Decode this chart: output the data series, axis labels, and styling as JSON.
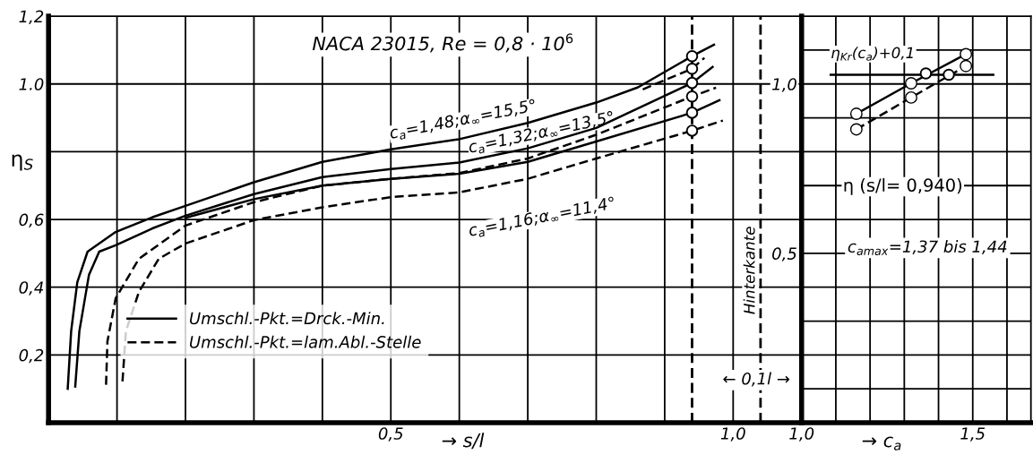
{
  "chart_data": [
    {
      "type": "line",
      "title": "NACA 23015, Re = 0,8 · 10$^{6}$",
      "xlabel": "→ s/l",
      "ylabel": "η$_{S}$",
      "xlim": [
        0,
        1.1
      ],
      "ylim": [
        0,
        1.2
      ],
      "xticks": [
        {
          "value": 0.1,
          "label": null
        },
        {
          "value": 0.2,
          "label": null
        },
        {
          "value": 0.3,
          "label": null
        },
        {
          "value": 0.4,
          "label": null
        },
        {
          "value": 0.5,
          "label": "0,5"
        },
        {
          "value": 0.6,
          "label": null
        },
        {
          "value": 0.7,
          "label": null
        },
        {
          "value": 0.8,
          "label": null
        },
        {
          "value": 0.9,
          "label": null
        },
        {
          "value": 1.0,
          "label": "1,0"
        }
      ],
      "yticks": [
        {
          "value": 0.2,
          "label": "0,2"
        },
        {
          "value": 0.4,
          "label": "0,4"
        },
        {
          "value": 0.6,
          "label": "0,6"
        },
        {
          "value": 0.8,
          "label": null
        },
        {
          "value": 1.0,
          "label": "1.0"
        },
        {
          "value": 1.2,
          "label": "1,2"
        }
      ],
      "grid": true,
      "legend": "bottom",
      "marker": "none",
      "series": [
        {
          "name": "Umschl.-Pkt.=Drck.-Min.",
          "color": "#000000",
          "line_style": "solid",
          "x": [
            0.028,
            0.033,
            0.042,
            0.057,
            0.098,
            0.151,
            0.2,
            0.3,
            0.4,
            0.5,
            0.6,
            0.7,
            0.8,
            0.861,
            0.94,
            0.972
          ],
          "values": [
            0.1,
            0.27,
            0.415,
            0.505,
            0.563,
            0.606,
            0.64,
            0.71,
            0.77,
            0.807,
            0.837,
            0.885,
            0.945,
            0.99,
            1.082,
            1.116
          ]
        },
        {
          "color": "#000000",
          "line_style": "dashed",
          "x": [
            0.868,
            0.94,
            0.958
          ],
          "values": [
            0.984,
            1.045,
            1.077
          ]
        },
        {
          "color": "#000000",
          "line_style": "solid",
          "x": [
            0.039,
            0.045,
            0.059,
            0.074,
            0.098,
            0.151,
            0.2,
            0.3,
            0.4,
            0.5,
            0.6,
            0.7,
            0.8,
            0.94,
            0.97
          ],
          "values": [
            0.107,
            0.27,
            0.436,
            0.505,
            0.524,
            0.573,
            0.611,
            0.675,
            0.725,
            0.749,
            0.768,
            0.81,
            0.87,
            1.003,
            1.05
          ]
        },
        {
          "name": "Umschl.-Pkt.=lam.Abl.-Stelle",
          "color": "#000000",
          "line_style": "dashed",
          "x": [
            0.084,
            0.086,
            0.098,
            0.132,
            0.2,
            0.3,
            0.4,
            0.5,
            0.6,
            0.7,
            0.8,
            0.94,
            0.975
          ],
          "values": [
            0.112,
            0.24,
            0.367,
            0.484,
            0.582,
            0.651,
            0.7,
            0.72,
            0.737,
            0.78,
            0.85,
            0.963,
            0.989
          ]
        },
        {
          "color": "#000000",
          "line_style": "solid",
          "x": [
            0.2,
            0.3,
            0.4,
            0.5,
            0.6,
            0.7,
            0.8,
            0.94,
            0.98
          ],
          "values": [
            0.605,
            0.66,
            0.7,
            0.72,
            0.735,
            0.77,
            0.83,
            0.915,
            0.952
          ]
        },
        {
          "color": "#000000",
          "line_style": "dashed",
          "x": [
            0.108,
            0.113,
            0.132,
            0.161,
            0.2,
            0.3,
            0.4,
            0.5,
            0.6,
            0.7,
            0.8,
            0.94,
            0.985
          ],
          "values": [
            0.122,
            0.27,
            0.386,
            0.484,
            0.529,
            0.598,
            0.636,
            0.666,
            0.68,
            0.72,
            0.78,
            0.862,
            0.892
          ]
        },
        {
          "type": "scatter",
          "color": "#000000",
          "marker": "circle",
          "x": [
            0.94,
            0.94,
            0.94,
            0.94,
            0.94,
            0.94
          ],
          "values": [
            1.082,
            1.045,
            1.003,
            0.963,
            0.915,
            0.862
          ]
        }
      ],
      "ref_lines": [
        {
          "axis": "x",
          "value": 0.94,
          "line_style": "dashed",
          "color": "#000000"
        },
        {
          "axis": "x",
          "value": 1.04,
          "label": "Hinterkante",
          "line_style": "dashed",
          "color": "#000000"
        }
      ],
      "annotations": [
        "c$_{a}$=1,48;α$_{∞}$=15,5°",
        "c$_{a}$=1,32;α$_{∞}$=13,5°",
        "c$_{a}$=1,16;α$_{∞}$=11,4°",
        "← 0,1l →"
      ]
    },
    {
      "type": "line",
      "xlabel": "→ c$_{a}$",
      "ylabel": "η (s/l= 0,940)",
      "xlim": [
        1.0,
        1.67
      ],
      "ylim": [
        0,
        1.2
      ],
      "xticks": [
        {
          "value": 1.0,
          "label": "1,0"
        },
        {
          "value": 1.1,
          "label": null
        },
        {
          "value": 1.2,
          "label": null
        },
        {
          "value": 1.3,
          "label": null
        },
        {
          "value": 1.4,
          "label": null
        },
        {
          "value": 1.5,
          "label": "1,5"
        },
        {
          "value": 1.6,
          "label": null
        }
      ],
      "yticks": [
        {
          "value": 0.1,
          "label": null
        },
        {
          "value": 0.2,
          "label": null
        },
        {
          "value": 0.3,
          "label": null
        },
        {
          "value": 0.4,
          "label": null
        },
        {
          "value": 0.5,
          "label": "0,5"
        },
        {
          "value": 0.6,
          "label": null
        },
        {
          "value": 0.7,
          "label": null
        },
        {
          "value": 0.8,
          "label": null
        },
        {
          "value": 0.9,
          "label": null
        },
        {
          "value": 1.0,
          "label": "1,0"
        },
        {
          "value": 1.1,
          "label": null
        }
      ],
      "grid": true,
      "marker": "circle",
      "series": [
        {
          "color": "#000000",
          "line_style": "solid",
          "x": [
            1.16,
            1.32,
            1.48
          ],
          "values": [
            0.912,
            1.002,
            1.088
          ]
        },
        {
          "color": "#000000",
          "line_style": "dashed",
          "x": [
            1.16,
            1.32,
            1.48
          ],
          "values": [
            0.866,
            0.96,
            1.053
          ]
        },
        {
          "type": "scatter",
          "color": "#000000",
          "x": [
            1.363,
            1.43
          ],
          "values": [
            1.031,
            1.027
          ]
        },
        {
          "name": "η$_{Kr}$(c$_{a}$)+0,1",
          "color": "#000000",
          "line_style": "solid",
          "marker": "none",
          "x": [
            1.085,
            1.56
          ],
          "values": [
            1.027,
            1.027
          ]
        }
      ],
      "annotations": [
        "c$_{amax}$=1,37 bis 1,44"
      ]
    }
  ]
}
